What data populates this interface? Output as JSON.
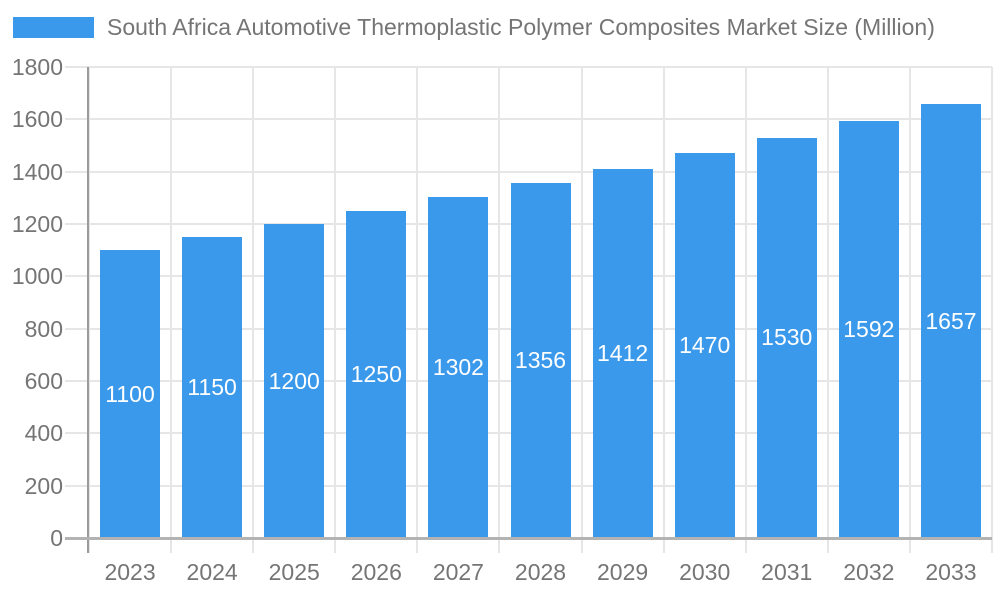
{
  "chart_data": {
    "type": "bar",
    "title": "South Africa Automotive Thermoplastic Polymer Composites Market Size (Million)",
    "categories": [
      "2023",
      "2024",
      "2025",
      "2026",
      "2027",
      "2028",
      "2029",
      "2030",
      "2031",
      "2032",
      "2033"
    ],
    "series": [
      {
        "name": "South Africa Automotive Thermoplastic Polymer Composites Market Size (Million)",
        "values": [
          1100,
          1150,
          1200,
          1250,
          1302,
          1356,
          1412,
          1470,
          1530,
          1592,
          1657
        ]
      }
    ],
    "bar_labels": [
      "1100",
      "1150",
      "1200",
      "1250",
      "1302",
      "1356",
      "1412",
      "1470",
      "1530",
      "1592",
      "1657"
    ],
    "xlabel": "",
    "ylabel": "",
    "ylim": [
      0,
      1800
    ],
    "ytick_step": 200,
    "yticks": [
      "0",
      "200",
      "400",
      "600",
      "800",
      "1000",
      "1200",
      "1400",
      "1600",
      "1800"
    ],
    "grid": "on",
    "legend_position": "top-left",
    "colors": {
      "bar": "#3b99ec",
      "grid": "#e6e6e6",
      "zero_line": "#b3b3b3",
      "axis_line": "#9b9b9b",
      "text": "#757575",
      "bar_label": "#ffffff",
      "background": "#ffffff"
    }
  }
}
